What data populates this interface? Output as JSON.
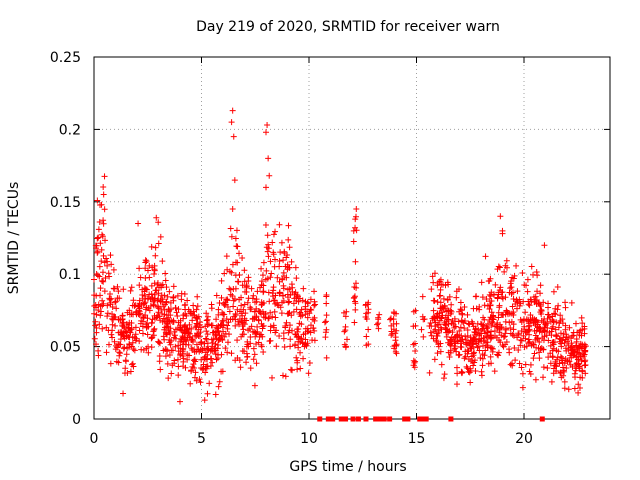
{
  "chart_data": {
    "type": "scatter",
    "title": "Day 219 of 2020, SRMTID for receiver warn",
    "xlabel": "GPS time / hours",
    "ylabel": "SRMTID / TECUs",
    "xlim": [
      0,
      24
    ],
    "ylim": [
      0,
      0.25
    ],
    "xticks": [
      0,
      5,
      10,
      15,
      20
    ],
    "yticks": [
      0,
      0.05,
      0.1,
      0.15,
      0.2,
      0.25
    ],
    "xtick_labels": [
      "0",
      "5",
      "10",
      "15",
      "20"
    ],
    "ytick_labels": [
      "0",
      "0.05",
      "0.1",
      "0.15",
      "0.2",
      "0.25"
    ],
    "grid": true,
    "marker": "+",
    "series_color": "#ff0000",
    "series": [
      {
        "name": "SRMTID",
        "profile": [
          [
            0.0,
            0.085
          ],
          [
            0.3,
            0.1
          ],
          [
            0.5,
            0.11
          ],
          [
            0.8,
            0.075
          ],
          [
            1.2,
            0.065
          ],
          [
            1.5,
            0.052
          ],
          [
            2.0,
            0.065
          ],
          [
            2.5,
            0.08
          ],
          [
            3.0,
            0.085
          ],
          [
            3.5,
            0.062
          ],
          [
            4.0,
            0.058
          ],
          [
            4.5,
            0.058
          ],
          [
            5.0,
            0.048
          ],
          [
            5.5,
            0.05
          ],
          [
            6.0,
            0.065
          ],
          [
            6.3,
            0.085
          ],
          [
            6.5,
            0.1
          ],
          [
            6.8,
            0.075
          ],
          [
            7.3,
            0.065
          ],
          [
            7.8,
            0.07
          ],
          [
            8.1,
            0.1
          ],
          [
            8.5,
            0.085
          ],
          [
            9.0,
            0.08
          ],
          [
            9.5,
            0.065
          ],
          [
            10.0,
            0.06
          ],
          [
            10.3,
            0.07
          ],
          [
            14.2,
            0.06
          ],
          [
            14.6,
            0.06
          ],
          [
            15.5,
            0.06
          ],
          [
            15.8,
            0.075
          ],
          [
            16.2,
            0.068
          ],
          [
            16.6,
            0.06
          ],
          [
            17.0,
            0.055
          ],
          [
            17.5,
            0.05
          ],
          [
            18.0,
            0.06
          ],
          [
            18.5,
            0.07
          ],
          [
            19.0,
            0.08
          ],
          [
            19.5,
            0.07
          ],
          [
            20.0,
            0.065
          ],
          [
            20.5,
            0.068
          ],
          [
            21.0,
            0.06
          ],
          [
            21.5,
            0.055
          ],
          [
            22.0,
            0.05
          ],
          [
            22.5,
            0.045
          ],
          [
            22.9,
            0.05
          ]
        ],
        "segments": [
          {
            "start": 0.0,
            "end": 10.3,
            "count": 1050
          },
          {
            "start": 15.6,
            "end": 22.9,
            "count": 780
          }
        ],
        "clusters": [
          {
            "x": 10.8,
            "count": 10,
            "y_min": 0.04,
            "y_max": 0.1
          },
          {
            "x": 11.7,
            "count": 10,
            "y_min": 0.045,
            "y_max": 0.075
          },
          {
            "x": 12.15,
            "count": 16,
            "y_min": 0.045,
            "y_max": 0.14
          },
          {
            "x": 12.7,
            "count": 14,
            "y_min": 0.05,
            "y_max": 0.085
          },
          {
            "x": 13.2,
            "count": 6,
            "y_min": 0.06,
            "y_max": 0.075
          },
          {
            "x": 13.8,
            "count": 6,
            "y_min": 0.055,
            "y_max": 0.07
          },
          {
            "x": 14.0,
            "count": 18,
            "y_min": 0.045,
            "y_max": 0.075
          },
          {
            "x": 14.9,
            "count": 12,
            "y_min": 0.035,
            "y_max": 0.08
          },
          {
            "x": 15.3,
            "count": 6,
            "y_min": 0.055,
            "y_max": 0.085
          }
        ],
        "peaks": [
          {
            "x": 0.45,
            "y": 0.155
          },
          {
            "x": 0.35,
            "y": 0.148
          },
          {
            "x": 2.05,
            "y": 0.135
          },
          {
            "x": 6.45,
            "y": 0.213
          },
          {
            "x": 6.4,
            "y": 0.205
          },
          {
            "x": 6.5,
            "y": 0.195
          },
          {
            "x": 6.55,
            "y": 0.165
          },
          {
            "x": 6.45,
            "y": 0.145
          },
          {
            "x": 8.05,
            "y": 0.203
          },
          {
            "x": 8.0,
            "y": 0.198
          },
          {
            "x": 8.1,
            "y": 0.18
          },
          {
            "x": 8.15,
            "y": 0.168
          },
          {
            "x": 8.0,
            "y": 0.16
          },
          {
            "x": 12.2,
            "y": 0.145
          },
          {
            "x": 12.15,
            "y": 0.138
          },
          {
            "x": 18.9,
            "y": 0.14
          },
          {
            "x": 19.0,
            "y": 0.128
          },
          {
            "x": 20.95,
            "y": 0.12
          },
          {
            "x": 4.0,
            "y": 0.012
          },
          {
            "x": 5.15,
            "y": 0.013
          }
        ],
        "zeros": [
          10.5,
          10.9,
          11.1,
          11.5,
          11.6,
          11.7,
          12.05,
          12.3,
          12.65,
          13.1,
          13.3,
          13.5,
          13.75,
          14.45,
          14.6,
          15.15,
          15.3,
          15.45,
          16.6,
          20.85
        ]
      }
    ]
  }
}
